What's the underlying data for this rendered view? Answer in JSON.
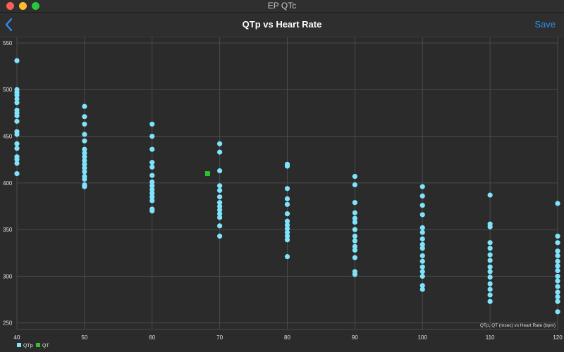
{
  "window": {
    "title": "EP QTc"
  },
  "nav": {
    "title": "QTp vs Heart Rate",
    "save_label": "Save"
  },
  "colors": {
    "background": "#2b2b2b",
    "grid": "#4a4a4a",
    "qtp": "#7fe3fb",
    "qt": "#2fc12f",
    "text": "#e0e0e0",
    "accent": "#2f8cf5"
  },
  "icons": {
    "back": "chevron-left-icon"
  },
  "chart_data": {
    "type": "scatter",
    "description_label": "QTp, QT (msec) vs Heart Rate (bpm)",
    "xlim": [
      40,
      120
    ],
    "ylim": [
      243,
      556
    ],
    "x_ticks": [
      40,
      50,
      60,
      70,
      80,
      90,
      100,
      110,
      120
    ],
    "y_ticks": [
      250,
      300,
      350,
      400,
      450,
      500,
      550
    ],
    "grid": true,
    "legend_position": "bottom-left",
    "series": [
      {
        "name": "QTp",
        "color": "#7fe3fb",
        "marker": "circle",
        "points": [
          [
            40,
            531
          ],
          [
            40,
            500
          ],
          [
            40,
            497
          ],
          [
            40,
            494
          ],
          [
            40,
            490
          ],
          [
            40,
            486
          ],
          [
            40,
            478
          ],
          [
            40,
            475
          ],
          [
            40,
            472
          ],
          [
            40,
            466
          ],
          [
            40,
            455
          ],
          [
            40,
            452
          ],
          [
            40,
            442
          ],
          [
            40,
            437
          ],
          [
            40,
            428
          ],
          [
            40,
            425
          ],
          [
            40,
            421
          ],
          [
            40,
            410
          ],
          [
            50,
            482
          ],
          [
            50,
            471
          ],
          [
            50,
            463
          ],
          [
            50,
            452
          ],
          [
            50,
            445
          ],
          [
            50,
            436
          ],
          [
            50,
            432
          ],
          [
            50,
            428
          ],
          [
            50,
            424
          ],
          [
            50,
            420
          ],
          [
            50,
            416
          ],
          [
            50,
            412
          ],
          [
            50,
            407
          ],
          [
            50,
            404
          ],
          [
            50,
            398
          ],
          [
            50,
            396
          ],
          [
            60,
            463
          ],
          [
            60,
            450
          ],
          [
            60,
            436
          ],
          [
            60,
            422
          ],
          [
            60,
            417
          ],
          [
            60,
            408
          ],
          [
            60,
            401
          ],
          [
            60,
            397
          ],
          [
            60,
            393
          ],
          [
            60,
            389
          ],
          [
            60,
            385
          ],
          [
            60,
            381
          ],
          [
            60,
            372
          ],
          [
            60,
            370
          ],
          [
            70,
            442
          ],
          [
            70,
            433
          ],
          [
            70,
            413
          ],
          [
            70,
            397
          ],
          [
            70,
            392
          ],
          [
            70,
            385
          ],
          [
            70,
            379
          ],
          [
            70,
            375
          ],
          [
            70,
            371
          ],
          [
            70,
            367
          ],
          [
            70,
            363
          ],
          [
            70,
            354
          ],
          [
            70,
            343
          ],
          [
            80,
            420
          ],
          [
            80,
            418
          ],
          [
            80,
            394
          ],
          [
            80,
            383
          ],
          [
            80,
            377
          ],
          [
            80,
            367
          ],
          [
            80,
            359
          ],
          [
            80,
            355
          ],
          [
            80,
            351
          ],
          [
            80,
            347
          ],
          [
            80,
            343
          ],
          [
            80,
            339
          ],
          [
            80,
            321
          ],
          [
            90,
            407
          ],
          [
            90,
            398
          ],
          [
            90,
            379
          ],
          [
            90,
            368
          ],
          [
            90,
            362
          ],
          [
            90,
            358
          ],
          [
            90,
            350
          ],
          [
            90,
            343
          ],
          [
            90,
            338
          ],
          [
            90,
            332
          ],
          [
            90,
            328
          ],
          [
            90,
            320
          ],
          [
            90,
            305
          ],
          [
            90,
            302
          ],
          [
            100,
            396
          ],
          [
            100,
            386
          ],
          [
            100,
            376
          ],
          [
            100,
            366
          ],
          [
            100,
            352
          ],
          [
            100,
            347
          ],
          [
            100,
            340
          ],
          [
            100,
            334
          ],
          [
            100,
            330
          ],
          [
            100,
            322
          ],
          [
            100,
            316
          ],
          [
            100,
            310
          ],
          [
            100,
            305
          ],
          [
            100,
            300
          ],
          [
            100,
            290
          ],
          [
            100,
            286
          ],
          [
            110,
            387
          ],
          [
            110,
            356
          ],
          [
            110,
            353
          ],
          [
            110,
            336
          ],
          [
            110,
            330
          ],
          [
            110,
            323
          ],
          [
            110,
            317
          ],
          [
            110,
            310
          ],
          [
            110,
            305
          ],
          [
            110,
            299
          ],
          [
            110,
            292
          ],
          [
            110,
            286
          ],
          [
            110,
            280
          ],
          [
            110,
            273
          ],
          [
            120,
            378
          ],
          [
            120,
            343
          ],
          [
            120,
            336
          ],
          [
            120,
            327
          ],
          [
            120,
            322
          ],
          [
            120,
            316
          ],
          [
            120,
            311
          ],
          [
            120,
            306
          ],
          [
            120,
            300
          ],
          [
            120,
            295
          ],
          [
            120,
            289
          ],
          [
            120,
            283
          ],
          [
            120,
            278
          ],
          [
            120,
            273
          ],
          [
            120,
            262
          ]
        ]
      },
      {
        "name": "QT",
        "color": "#2fc12f",
        "marker": "square",
        "points": [
          [
            68.2,
            410
          ]
        ]
      }
    ]
  }
}
